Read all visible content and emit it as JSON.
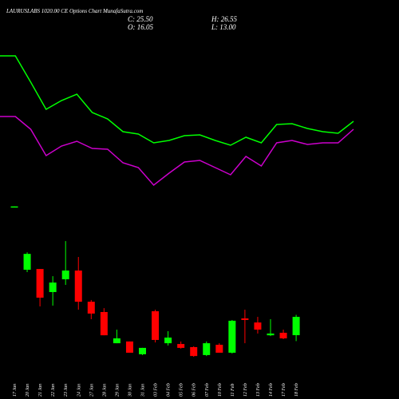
{
  "chart_data": [
    {
      "type": "line",
      "series": [
        {
          "color": "#00ff00",
          "values": [
            230,
            230,
            197,
            163,
            174,
            182,
            159,
            151,
            135,
            132,
            121,
            124,
            130,
            131,
            124,
            118,
            128,
            121,
            144,
            145,
            139,
            135,
            133,
            148
          ]
        },
        {
          "color": "#cc00cc",
          "values": [
            154,
            154,
            138,
            105,
            117,
            123,
            114,
            113,
            96,
            90,
            68,
            83,
            97,
            99,
            90,
            81,
            104,
            92,
            121,
            124,
            119,
            121,
            121,
            138
          ]
        }
      ],
      "ylim": [
        0,
        300
      ]
    },
    {
      "type": "candlestick",
      "title": "LAURUSLABS 1020.00 CE Options Chart MunafaSutra.com",
      "ohlc_labels": {
        "close": "C: 25.50",
        "high": "H: 26.55",
        "open": "O: 16.05",
        "low": "L: 13.00"
      },
      "categories": [
        "17 Jan",
        "20 Jan",
        "21 Jan",
        "22 Jan",
        "23 Jan",
        "24 Jan",
        "27 Jan",
        "28 Jan",
        "29 Jan",
        "30 Jan",
        "31 Jan",
        "03 Feb",
        "04 Feb",
        "05 Feb",
        "06 Feb",
        "07 Feb",
        "10 Feb",
        "11 Feb",
        "12 Feb",
        "13 Feb",
        "14 Feb",
        "17 Feb",
        "18 Feb"
      ],
      "open": [
        82.0,
        49.8,
        50.2,
        38.3,
        44.9,
        49.4,
        33.3,
        28.0,
        11.9,
        12.8,
        6.2,
        28.4,
        11.9,
        11.5,
        9.9,
        5.8,
        11.1,
        7.0,
        24.7,
        22.6,
        16.0,
        17.3,
        16.05
      ],
      "high": [
        82.5,
        58.8,
        50.2,
        46.5,
        64.6,
        56.4,
        34.2,
        30.0,
        18.9,
        12.8,
        9.5,
        29.2,
        18.1,
        12.8,
        10.3,
        12.8,
        11.9,
        23.9,
        29.2,
        25.5,
        24.3,
        18.9,
        26.55
      ],
      "low": [
        82.0,
        48.6,
        30.9,
        31.3,
        42.0,
        29.2,
        24.3,
        16.0,
        11.9,
        7.0,
        5.8,
        12.3,
        10.7,
        9.1,
        4.9,
        5.3,
        7.0,
        6.6,
        11.9,
        16.9,
        15.6,
        14.0,
        13.0
      ],
      "close": [
        82.5,
        58.0,
        35.4,
        43.2,
        49.4,
        33.3,
        27.2,
        16.0,
        14.4,
        7.0,
        9.5,
        13.6,
        14.8,
        9.5,
        5.3,
        11.9,
        7.0,
        23.5,
        23.9,
        18.9,
        16.9,
        14.4,
        25.5
      ],
      "up_color": "#00ff00",
      "down_color": "#ff0000",
      "ylim": [
        0,
        189
      ]
    }
  ]
}
